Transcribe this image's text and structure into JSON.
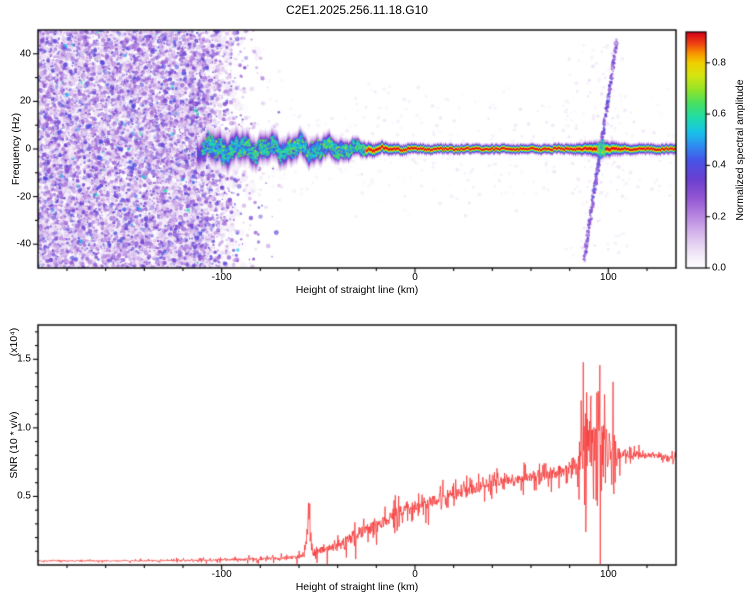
{
  "title": "C2E1.2025.256.11.18.G10",
  "colors": {
    "background": "#ffffff",
    "frame": "#000000",
    "snr_line": "#f53232"
  },
  "chart_data": [
    {
      "type": "heatmap",
      "name": "radio-occultation-spectrogram",
      "title": "C2E1.2025.256.11.18.G10",
      "xlabel": "Height of straight line (km)",
      "ylabel": "Frequency (Hz)",
      "xlim": [
        -195,
        135
      ],
      "ylim": [
        -50,
        50
      ],
      "xticks": [
        -100,
        0,
        100
      ],
      "xtick_labels": [
        "-100",
        "0",
        "100"
      ],
      "x_minor_step": 20,
      "yticks": [
        -40,
        -20,
        0,
        20,
        40
      ],
      "ytick_labels": [
        "-40",
        "-20",
        "0",
        "20",
        "40"
      ],
      "y_minor_step": 10,
      "colorbar": {
        "label": "Normalized spectral amplitude",
        "ticks": [
          0,
          0.2,
          0.4,
          0.6,
          0.8
        ],
        "tick_labels": [
          "0.0",
          "0.2",
          "0.4",
          "0.6",
          "0.8"
        ],
        "vmax": 0.92,
        "stops": [
          [
            0,
            "#ffffff"
          ],
          [
            0.05,
            "#f4eefa"
          ],
          [
            0.13,
            "#ddc2ee"
          ],
          [
            0.22,
            "#b988e0"
          ],
          [
            0.3,
            "#9355d2"
          ],
          [
            0.38,
            "#6a3fd0"
          ],
          [
            0.46,
            "#4555e8"
          ],
          [
            0.52,
            "#2f8cf0"
          ],
          [
            0.58,
            "#18c4e8"
          ],
          [
            0.64,
            "#20dca8"
          ],
          [
            0.7,
            "#48e060"
          ],
          [
            0.76,
            "#96e428"
          ],
          [
            0.82,
            "#d8e410"
          ],
          [
            0.87,
            "#f0d000"
          ],
          [
            0.91,
            "#f89800"
          ],
          [
            0.95,
            "#f04810"
          ],
          [
            1,
            "#d80018"
          ]
        ]
      },
      "features": {
        "noise_region": {
          "description": "dense random purple speckle noise filling all frequencies",
          "x_range": [
            -195,
            -95
          ],
          "freq_range": [
            -50,
            50
          ],
          "amplitude_range": [
            0.05,
            0.5
          ]
        },
        "signal_band": {
          "description": "horizontal occultation signal band near 0 Hz; broad noisy blue-green from -110 to -30 km, narrow intense red core from -25 to 135 km",
          "center_freq_hz": 0,
          "x_start": -113,
          "x_end": 135,
          "profile_x_width_intensity": [
            [
              -113,
              6.5,
              0.4
            ],
            [
              -105,
              7.0,
              0.55
            ],
            [
              -100,
              7.0,
              0.62
            ],
            [
              -90,
              6.5,
              0.63
            ],
            [
              -80,
              6.0,
              0.62
            ],
            [
              -70,
              5.8,
              0.64
            ],
            [
              -60,
              5.5,
              0.66
            ],
            [
              -50,
              5.2,
              0.72
            ],
            [
              -42,
              4.6,
              0.85
            ],
            [
              -35,
              4.0,
              0.92
            ],
            [
              -28,
              3.2,
              0.97
            ],
            [
              -20,
              2.6,
              1.0
            ],
            [
              -10,
              2.2,
              1.0
            ],
            [
              0,
              2.0,
              1.0
            ],
            [
              20,
              1.9,
              1.0
            ],
            [
              40,
              1.9,
              1.0
            ],
            [
              60,
              1.9,
              1.0
            ],
            [
              80,
              2.0,
              1.0
            ],
            [
              90,
              2.6,
              1.0
            ],
            [
              96,
              3.4,
              1.0
            ],
            [
              102,
              2.8,
              1.0
            ],
            [
              110,
              2.1,
              1.0
            ],
            [
              135,
              2.0,
              1.0
            ]
          ],
          "wiggle_amp_hz": [
            [
              -113,
              2.8
            ],
            [
              -80,
              3.0
            ],
            [
              -55,
              3.4
            ],
            [
              -35,
              2.2
            ],
            [
              -20,
              1.2
            ],
            [
              -5,
              0.6
            ],
            [
              10,
              0.4
            ],
            [
              135,
              0.3
            ]
          ]
        },
        "diagonal_streak": {
          "description": "faint purple-blue diagonal interference streak crossing the band",
          "x_range": [
            87.5,
            104.5
          ],
          "freq_range": [
            -46,
            46
          ],
          "slope_hz_per_km": 5.4,
          "amplitude_range": [
            0.15,
            0.5
          ]
        }
      }
    },
    {
      "type": "line",
      "name": "snr-profile",
      "xlabel": "Height of straight line (km)",
      "ylabel": "SNR (10 * v/v)",
      "y_scale_label": "(x10⁴)",
      "xlim": [
        -195,
        135
      ],
      "ylim": [
        0,
        1.75
      ],
      "xticks": [
        -100,
        0,
        100
      ],
      "xtick_labels": [
        "-100",
        "0",
        "100"
      ],
      "x_minor_step": 20,
      "yticks": [
        0.5,
        1.0,
        1.5
      ],
      "ytick_labels": [
        "0.5",
        "1.0",
        "1.5"
      ],
      "y_minor_step": 0.1,
      "series": [
        {
          "name": "SNR",
          "color": "#f53232",
          "envelope_x_mean_amp": [
            [
              -195,
              0.03,
              0.008
            ],
            [
              -160,
              0.03,
              0.008
            ],
            [
              -130,
              0.032,
              0.01
            ],
            [
              -110,
              0.035,
              0.015
            ],
            [
              -90,
              0.04,
              0.02
            ],
            [
              -70,
              0.05,
              0.03
            ],
            [
              -60,
              0.06,
              0.035
            ],
            [
              -57,
              0.09,
              0.05
            ],
            [
              -55,
              0.35,
              0.2
            ],
            [
              -53,
              0.1,
              0.06
            ],
            [
              -45,
              0.12,
              0.07
            ],
            [
              -35,
              0.18,
              0.1
            ],
            [
              -25,
              0.26,
              0.12
            ],
            [
              -15,
              0.33,
              0.1
            ],
            [
              -5,
              0.4,
              0.12
            ],
            [
              5,
              0.46,
              0.1
            ],
            [
              15,
              0.5,
              0.1
            ],
            [
              25,
              0.54,
              0.1
            ],
            [
              35,
              0.58,
              0.09
            ],
            [
              45,
              0.61,
              0.07
            ],
            [
              55,
              0.63,
              0.08
            ],
            [
              65,
              0.66,
              0.1
            ],
            [
              75,
              0.68,
              0.12
            ],
            [
              82,
              0.72,
              0.18
            ],
            [
              87,
              0.85,
              0.45
            ],
            [
              91,
              0.95,
              0.65
            ],
            [
              95,
              0.85,
              0.7
            ],
            [
              99,
              0.8,
              0.6
            ],
            [
              103,
              0.78,
              0.35
            ],
            [
              107,
              0.8,
              0.1
            ],
            [
              115,
              0.8,
              0.05
            ],
            [
              125,
              0.8,
              0.05
            ],
            [
              133,
              0.78,
              0.04
            ]
          ]
        }
      ]
    }
  ]
}
